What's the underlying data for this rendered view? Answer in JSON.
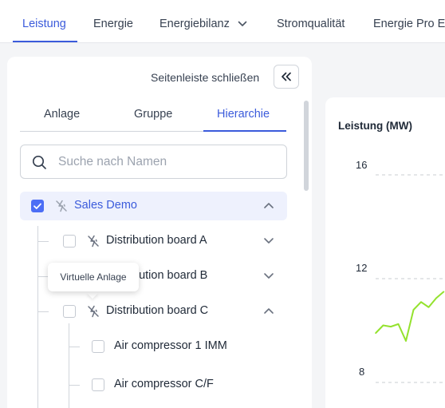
{
  "nav": {
    "tabs": [
      "Leistung",
      "Energie",
      "Energiebilanz",
      "Stromqualität",
      "Energie Pro E"
    ],
    "active_tab": "Leistung"
  },
  "sidebar": {
    "close_label": "Seitenleiste schließen",
    "subtabs": [
      "Anlage",
      "Gruppe",
      "Hierarchie"
    ],
    "active_subtab": "Hierarchie",
    "search_placeholder": "Suche nach Namen",
    "tree": {
      "root": {
        "label": "Sales Demo",
        "checked": true,
        "expanded": true
      },
      "items": [
        {
          "label": "Distribution board A",
          "checked": false,
          "expanded": false
        },
        {
          "label": "Distribution board B",
          "checked": false,
          "expanded": false
        },
        {
          "label": "Distribution board C",
          "checked": false,
          "expanded": true
        }
      ],
      "children_c": [
        {
          "label": "Air compressor 1 IMM",
          "checked": false
        },
        {
          "label": "Air compressor C/F",
          "checked": false
        }
      ]
    },
    "tooltip": "Virtuelle Anlage"
  },
  "chart_data": {
    "type": "line",
    "title": "Leistung (MW)",
    "yticks": [
      "16",
      "12",
      "8"
    ],
    "ylim": [
      8,
      16
    ],
    "series": [
      {
        "values": [
          9.9,
          10.2,
          10.15,
          10.25,
          9.6,
          10.8,
          11.1,
          10.9,
          11.25,
          11.5
        ],
        "color": "#94e22e"
      }
    ],
    "grid": true
  },
  "colors": {
    "accent": "#3b5bdb",
    "line": "#94e22e"
  }
}
